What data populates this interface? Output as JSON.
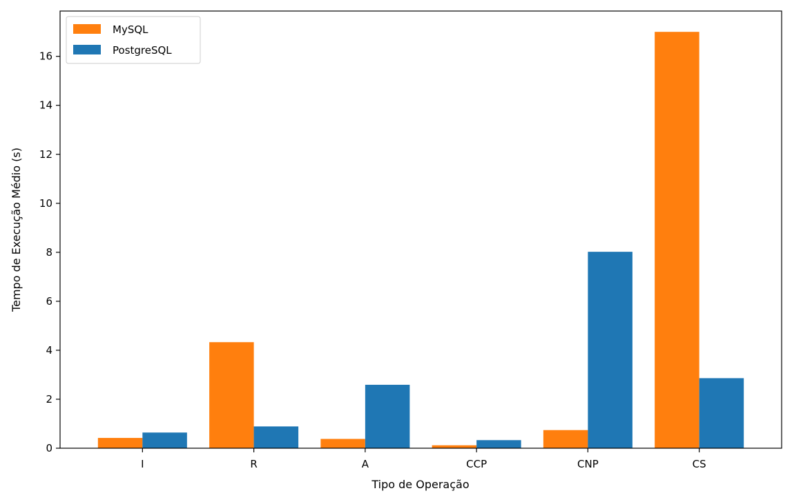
{
  "chart_data": {
    "type": "bar",
    "title": "",
    "xlabel": "Tipo de Operação",
    "ylabel": "Tempo de Execução Médio (s)",
    "categories": [
      "I",
      "R",
      "A",
      "CCP",
      "CNP",
      "CS"
    ],
    "ylim": [
      0,
      17.85
    ],
    "yticks": [
      0,
      2,
      4,
      6,
      8,
      10,
      12,
      14,
      16
    ],
    "grid": false,
    "legend_position": "top-left",
    "series": [
      {
        "name": "MySQL",
        "color": "#ff7f0e",
        "values": [
          0.42,
          4.33,
          0.38,
          0.12,
          0.74,
          17.0
        ]
      },
      {
        "name": "PostgreSQL",
        "color": "#1f77b4",
        "values": [
          0.64,
          0.89,
          2.59,
          0.33,
          8.02,
          2.86
        ]
      }
    ]
  }
}
